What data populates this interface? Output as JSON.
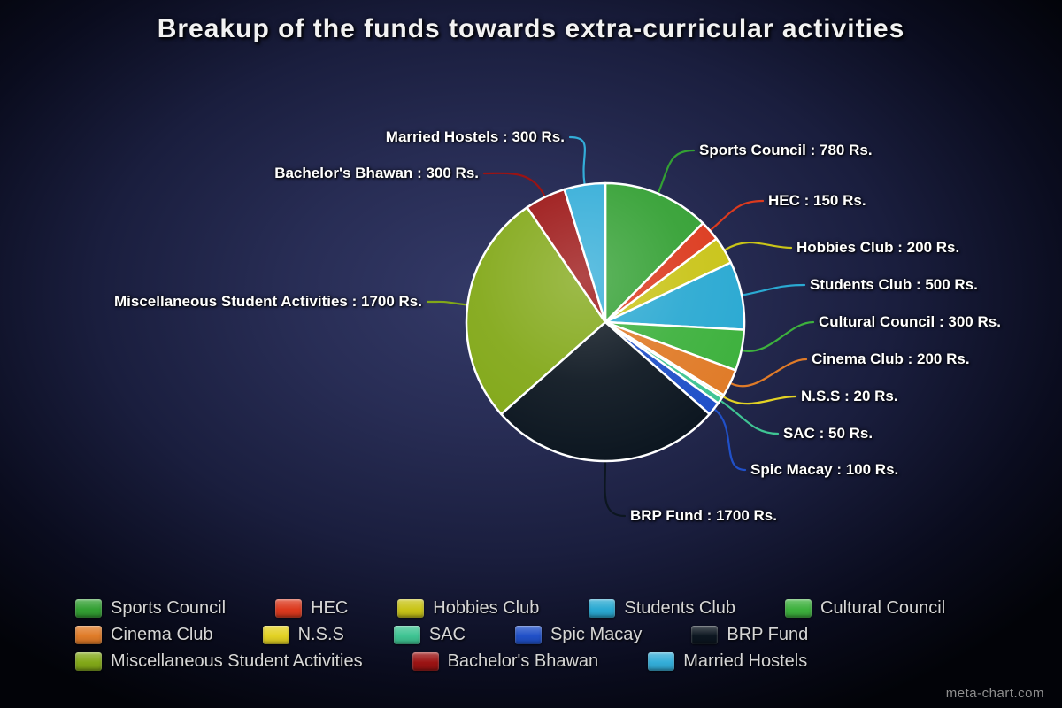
{
  "watermark": "meta-chart.com",
  "chart_data": {
    "type": "pie",
    "title": "Breakup of the funds towards extra-curricular activities",
    "unit": "Rs.",
    "total": 6300,
    "direction": "clockwise",
    "start_angle_deg": 0,
    "legend_position": "bottom",
    "slices": [
      {
        "label": "Sports Council",
        "value": 780,
        "color": "#33a033"
      },
      {
        "label": "HEC",
        "value": 150,
        "color": "#dc3a1e"
      },
      {
        "label": "Hobbies Club",
        "value": 200,
        "color": "#c9c418"
      },
      {
        "label": "Students Club",
        "value": 500,
        "color": "#2aa9d2"
      },
      {
        "label": "Cultural Council",
        "value": 300,
        "color": "#3db13d"
      },
      {
        "label": "Cinema Club",
        "value": 200,
        "color": "#e07b28"
      },
      {
        "label": "N.S.S",
        "value": 20,
        "color": "#e3d224"
      },
      {
        "label": "SAC",
        "value": 50,
        "color": "#3fc493"
      },
      {
        "label": "Spic Macay",
        "value": 100,
        "color": "#2050c8"
      },
      {
        "label": "BRP Fund",
        "value": 1700,
        "color": "#0c1620"
      },
      {
        "label": "Miscellaneous Student Activities",
        "value": 1700,
        "color": "#82a818"
      },
      {
        "label": "Bachelor's Bhawan",
        "value": 300,
        "color": "#9b1313"
      },
      {
        "label": "Married Hostels",
        "value": 300,
        "color": "#33add8"
      }
    ]
  }
}
